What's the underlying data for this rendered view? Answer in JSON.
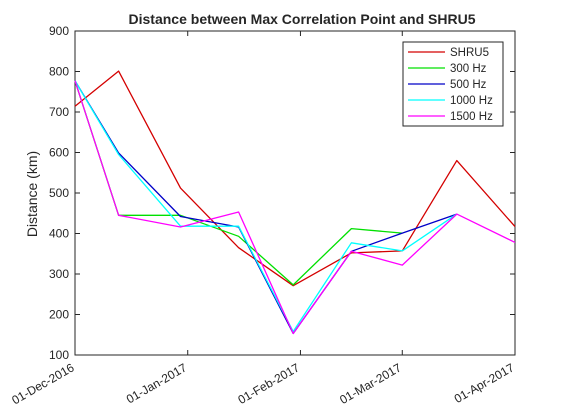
{
  "chart_data": {
    "type": "line",
    "title": "Distance between Max Correlation Point and SHRU5",
    "xlabel": "",
    "ylabel": "Distance (km)",
    "x_is_date": true,
    "xlim": [
      "2016-12-01",
      "2017-04-01"
    ],
    "ylim": [
      100,
      900
    ],
    "yticks": [
      100,
      200,
      300,
      400,
      500,
      600,
      700,
      800,
      900
    ],
    "xticks": [
      {
        "date": "2016-12-01",
        "label": "01-Dec-2016"
      },
      {
        "date": "2017-01-01",
        "label": "01-Jan-2017"
      },
      {
        "date": "2017-02-01",
        "label": "01-Feb-2017"
      },
      {
        "date": "2017-03-01",
        "label": "01-Mar-2017"
      },
      {
        "date": "2017-04-01",
        "label": "01-Apr-2017"
      }
    ],
    "grid": false,
    "legend_position": "top-right",
    "series": [
      {
        "name": "SHRU5",
        "color": "#d40000",
        "points": [
          [
            "2016-12-01",
            714
          ],
          [
            "2016-12-13",
            801
          ],
          [
            "2016-12-30",
            512
          ],
          [
            "2017-01-15",
            365
          ],
          [
            "2017-01-30",
            271
          ],
          [
            "2017-02-15",
            352
          ],
          [
            "2017-03-01",
            357
          ],
          [
            "2017-03-16",
            580
          ],
          [
            "2017-04-01",
            417
          ]
        ]
      },
      {
        "name": "300 Hz",
        "color": "#00e000",
        "points": [
          [
            "2016-12-01",
            777
          ],
          [
            "2016-12-13",
            445
          ],
          [
            "2016-12-30",
            445
          ],
          [
            "2017-01-15",
            393
          ],
          [
            "2017-01-30",
            273
          ],
          [
            "2017-02-15",
            412
          ],
          [
            "2017-03-01",
            401
          ]
        ]
      },
      {
        "name": "500 Hz",
        "color": "#0000c8",
        "points": [
          [
            "2016-12-01",
            777
          ],
          [
            "2016-12-13",
            599
          ],
          [
            "2016-12-30",
            442
          ],
          [
            "2017-01-15",
            416
          ],
          [
            "2017-01-30",
            153
          ],
          [
            "2017-02-15",
            356
          ],
          [
            "2017-03-01",
            401
          ],
          [
            "2017-03-16",
            448
          ]
        ]
      },
      {
        "name": "1000 Hz",
        "color": "#00ffff",
        "points": [
          [
            "2016-12-01",
            777
          ],
          [
            "2016-12-13",
            595
          ],
          [
            "2016-12-30",
            418
          ],
          [
            "2017-01-15",
            418
          ],
          [
            "2017-01-30",
            158
          ],
          [
            "2017-02-15",
            377
          ],
          [
            "2017-03-01",
            357
          ],
          [
            "2017-03-16",
            448
          ]
        ]
      },
      {
        "name": "1500 Hz",
        "color": "#ff00ff",
        "points": [
          [
            "2016-12-01",
            777
          ],
          [
            "2016-12-13",
            445
          ],
          [
            "2016-12-30",
            416
          ],
          [
            "2017-01-15",
            453
          ],
          [
            "2017-01-30",
            153
          ],
          [
            "2017-02-15",
            356
          ],
          [
            "2017-03-01",
            322
          ],
          [
            "2017-03-16",
            448
          ],
          [
            "2017-04-01",
            378
          ]
        ]
      }
    ]
  }
}
